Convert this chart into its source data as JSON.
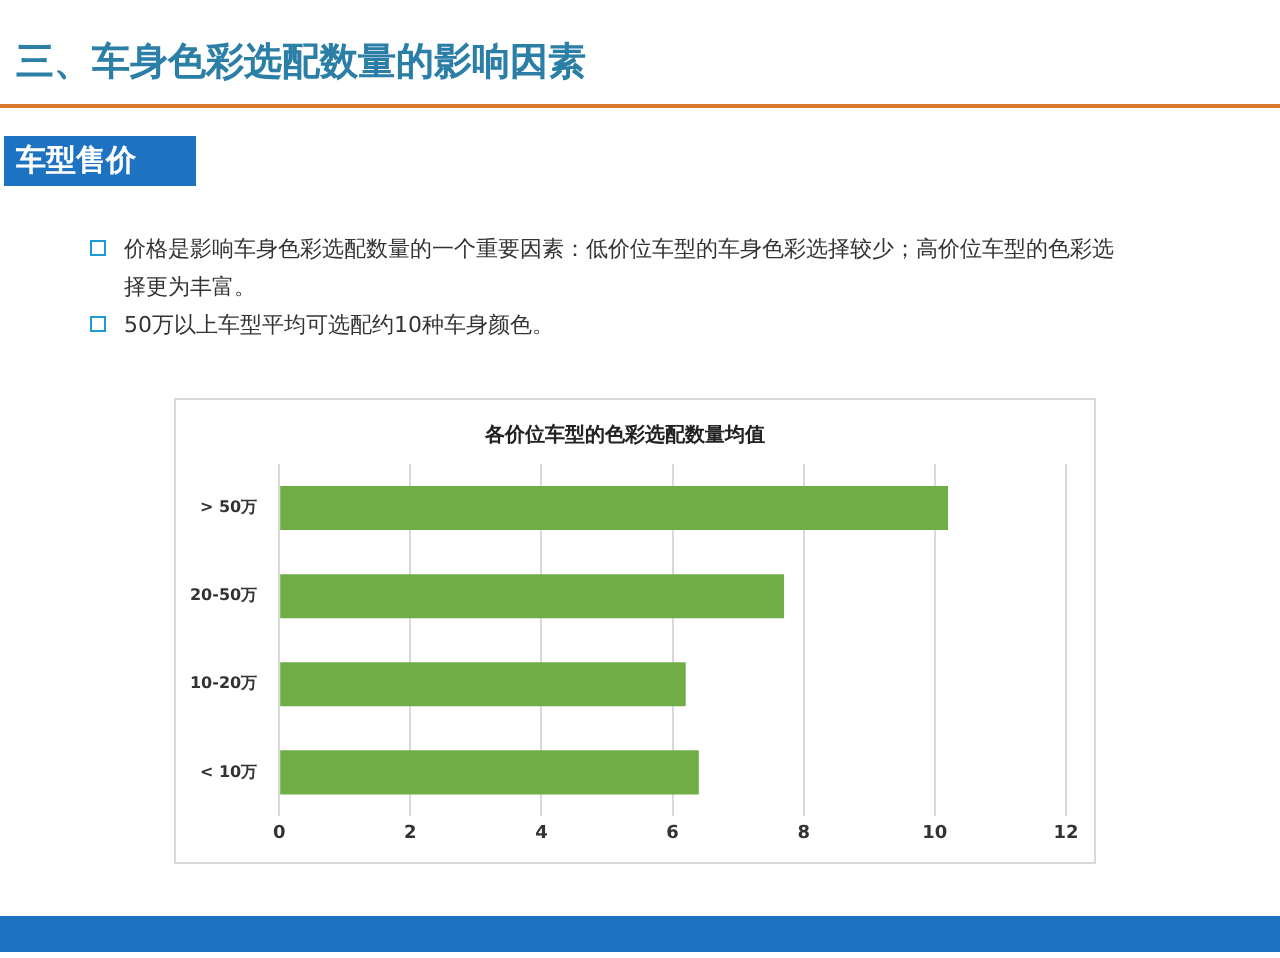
{
  "chart_data": {
    "type": "bar",
    "orientation": "horizontal",
    "title": "各价位车型的色彩选配数量均值",
    "subtitle": "三、车身色彩选配数量的影响因素",
    "annotations": [
      "车型售价",
      "价格是影响车身色彩选配数量的一个重要因素：低价位车型的车身色彩选择较少；高价位车型的色彩选择更为丰富。",
      "50万以上车型平均可选配约10种车身颜色。"
    ],
    "categories": [
      "> 50万",
      "20-50万",
      "10-20万",
      "< 10万"
    ],
    "values": [
      10.2,
      7.7,
      6.2,
      6.4
    ],
    "color": "#70ad47",
    "xlim": [
      0,
      12
    ],
    "xticks": [
      0,
      2,
      4,
      6,
      8,
      10,
      12
    ],
    "grid": "x",
    "legend": false
  }
}
